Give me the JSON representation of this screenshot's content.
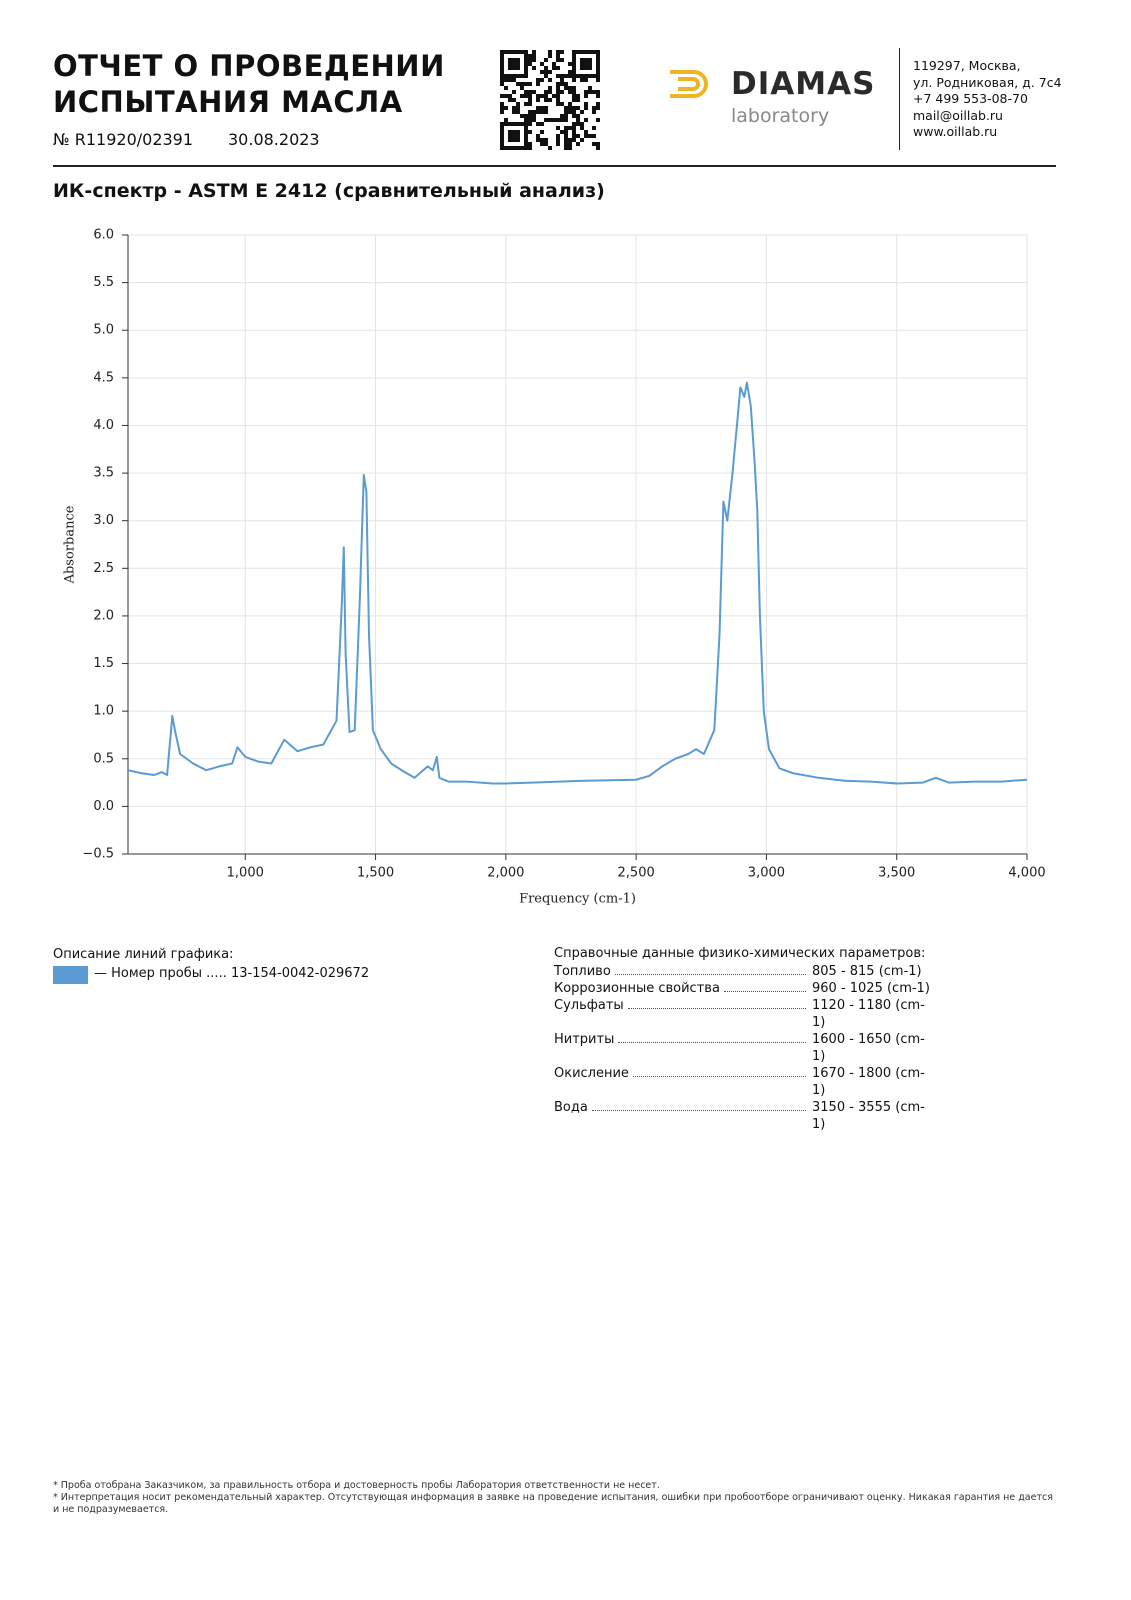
{
  "header": {
    "title_lines": [
      "ОТЧЕТ О ПРОВЕДЕНИИ",
      "ИСПЫТАНИЯ МАСЛА"
    ],
    "number": "№ R11920/02391",
    "date": "30.08.2023",
    "logo": {
      "name": "DIAMAS",
      "subtitle": "laboratory"
    },
    "contacts": [
      "119297, Москва,",
      "ул. Родниковая, д. 7с4",
      "+7 499 553-08-70",
      "mail@oillab.ru",
      "www.oillab.ru"
    ]
  },
  "section_title": "ИК-спектр - ASTM E 2412 (сравнительный анализ)",
  "chart_data": {
    "type": "line",
    "x_label": "Frequency (cm-1)",
    "y_label": "Absorbance",
    "xlim": [
      550,
      4000
    ],
    "ylim": [
      -0.5,
      6.0
    ],
    "xticks": [
      {
        "value": 1000,
        "label": "1,000"
      },
      {
        "value": 1500,
        "label": "1,500"
      },
      {
        "value": 2000,
        "label": "2,000"
      },
      {
        "value": 2500,
        "label": "2,500"
      },
      {
        "value": 3000,
        "label": "3,000"
      },
      {
        "value": 3500,
        "label": "3,500"
      },
      {
        "value": 4000,
        "label": "4,000"
      }
    ],
    "yticks": [
      {
        "value": -0.5,
        "label": "−0.5"
      },
      {
        "value": 0,
        "label": "0.0"
      },
      0.5,
      {
        "value": 1,
        "label": "1.0"
      },
      1.5,
      {
        "value": 2,
        "label": "2.0"
      },
      2.5,
      {
        "value": 3,
        "label": "3.0"
      },
      3.5,
      {
        "value": 4,
        "label": "4.0"
      },
      4.5,
      {
        "value": 5,
        "label": "5.0"
      },
      5.5,
      {
        "value": 6,
        "label": "6.0"
      }
    ],
    "grid": true,
    "x": [
      550,
      600,
      650,
      680,
      700,
      720,
      730,
      750,
      800,
      850,
      900,
      950,
      970,
      1000,
      1050,
      1100,
      1150,
      1200,
      1250,
      1300,
      1350,
      1370,
      1378,
      1385,
      1400,
      1420,
      1440,
      1455,
      1465,
      1475,
      1490,
      1520,
      1560,
      1600,
      1650,
      1700,
      1720,
      1735,
      1745,
      1780,
      1850,
      1950,
      2000,
      2100,
      2300,
      2500,
      2550,
      2600,
      2650,
      2700,
      2730,
      2760,
      2800,
      2820,
      2835,
      2850,
      2870,
      2890,
      2900,
      2915,
      2925,
      2940,
      2955,
      2965,
      2975,
      2990,
      3010,
      3050,
      3100,
      3200,
      3300,
      3400,
      3500,
      3600,
      3650,
      3700,
      3800,
      3900,
      4000
    ],
    "series": [
      {
        "name": "— Номер пробы ..... 13-154-0042-029672",
        "color": "#5b9bd2",
        "values": [
          0.38,
          0.35,
          0.33,
          0.36,
          0.33,
          0.95,
          0.8,
          0.55,
          0.45,
          0.38,
          0.42,
          0.45,
          0.62,
          0.52,
          0.47,
          0.45,
          0.7,
          0.58,
          0.62,
          0.65,
          0.9,
          2.1,
          2.72,
          1.6,
          0.78,
          0.8,
          2.2,
          3.48,
          3.3,
          1.8,
          0.8,
          0.6,
          0.45,
          0.38,
          0.3,
          0.42,
          0.38,
          0.52,
          0.3,
          0.26,
          0.26,
          0.24,
          0.24,
          0.25,
          0.27,
          0.28,
          0.32,
          0.42,
          0.5,
          0.55,
          0.6,
          0.55,
          0.8,
          1.8,
          3.2,
          3.0,
          3.5,
          4.1,
          4.4,
          4.3,
          4.45,
          4.2,
          3.6,
          3.1,
          2.0,
          1.0,
          0.6,
          0.4,
          0.35,
          0.3,
          0.27,
          0.26,
          0.24,
          0.25,
          0.3,
          0.25,
          0.26,
          0.26,
          0.28
        ]
      }
    ]
  },
  "legend_title": "Описание линий графика:",
  "reference": {
    "title": "Справочные данные физико-химических параметров:",
    "rows": [
      {
        "name": "Топливо",
        "range": "805 - 815 (cm-1)"
      },
      {
        "name": "Коррозионные свойства",
        "range": "960 - 1025 (cm-1)"
      },
      {
        "name": "Сульфаты",
        "range": "1120 - 1180 (cm-1)"
      },
      {
        "name": "Нитриты",
        "range": "1600 - 1650 (cm-1)"
      },
      {
        "name": "Окисление",
        "range": "1670 - 1800 (cm-1)"
      },
      {
        "name": "Вода",
        "range": "3150 - 3555 (cm-1)"
      }
    ]
  },
  "footnotes": [
    "* Проба отобрана Заказчиком, за правильность отбора и достоверность пробы Лаборатория ответственности не несет.",
    "* Интерпретация носит рекомендательный характер. Отсутствующая информация в заявке на проведение испытания, ошибки при пробоотборе ограничивают оценку. Никакая гарантия не дается и не подразумевается."
  ]
}
